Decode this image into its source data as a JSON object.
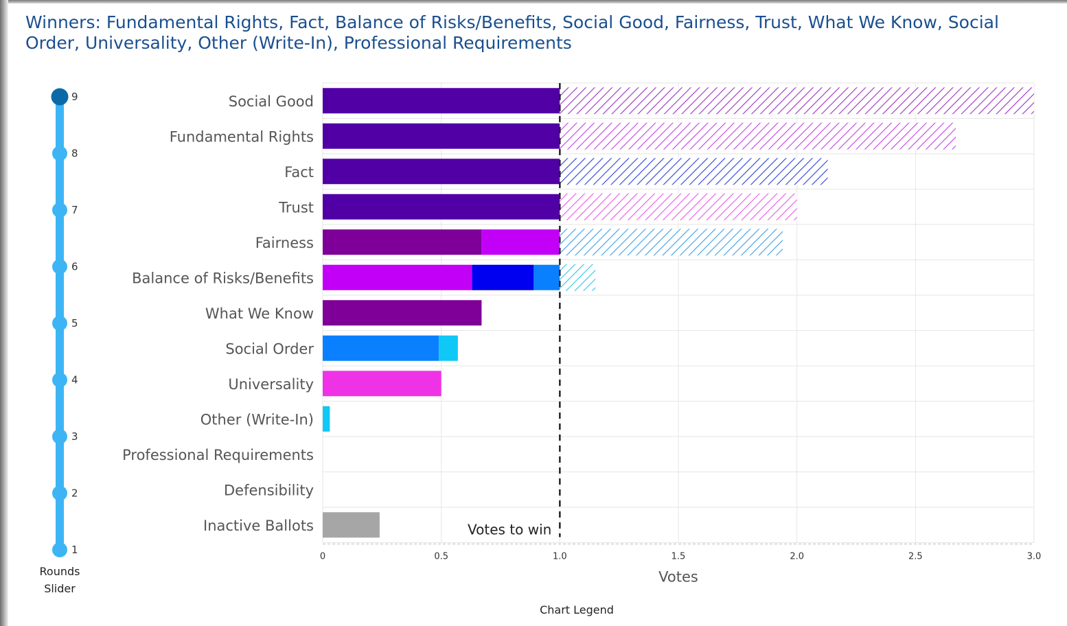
{
  "title": "Winners: Fundamental Rights, Fact, Balance of Risks/Benefits, Social Good, Fairness, Trust, What We Know, Social Order, Universality, Other (Write-In), Professional Requirements",
  "slider": {
    "rounds": [
      "1",
      "2",
      "3",
      "4",
      "5",
      "6",
      "7",
      "8",
      "9"
    ],
    "selected": "9",
    "label_line1": "Rounds",
    "label_line2": "Slider",
    "track_color": "#3db5f5",
    "handle_color": "#0a6aa8"
  },
  "legend_caption": "Chart Legend",
  "chart_data": {
    "type": "bar",
    "orientation": "horizontal",
    "stacked": true,
    "xlabel": "Votes",
    "xlim": [
      0,
      3.0
    ],
    "x_ticks": [
      "0",
      "0.5",
      "1.0",
      "1.5",
      "2.0",
      "2.5",
      "3.0"
    ],
    "threshold": {
      "value": 1.0,
      "label": "Votes to win"
    },
    "grid": true,
    "categories": [
      {
        "name": "Social Good",
        "segments": [
          {
            "value": 1.0,
            "color": "#5000a5",
            "hatched": false
          }
        ],
        "surplus": {
          "value": 2.0,
          "color": "#9b2fc4"
        }
      },
      {
        "name": "Fundamental Rights",
        "segments": [
          {
            "value": 1.0,
            "color": "#5000a5",
            "hatched": false
          }
        ],
        "surplus": {
          "value": 1.67,
          "color": "#c43de8"
        }
      },
      {
        "name": "Fact",
        "segments": [
          {
            "value": 1.0,
            "color": "#5000a5",
            "hatched": false
          }
        ],
        "surplus": {
          "value": 1.13,
          "color": "#2a3fd6"
        }
      },
      {
        "name": "Trust",
        "segments": [
          {
            "value": 1.0,
            "color": "#5000a5",
            "hatched": false
          }
        ],
        "surplus": {
          "value": 1.0,
          "color": "#ea55ea"
        }
      },
      {
        "name": "Fairness",
        "segments": [
          {
            "value": 0.67,
            "color": "#7e0098",
            "hatched": false
          },
          {
            "value": 0.33,
            "color": "#c300f7",
            "hatched": false
          }
        ],
        "surplus": {
          "value": 0.94,
          "color": "#3a9ee8"
        }
      },
      {
        "name": "Balance of Risks/Benefits",
        "segments": [
          {
            "value": 0.63,
            "color": "#c300f7",
            "hatched": false
          },
          {
            "value": 0.26,
            "color": "#0000f0",
            "hatched": false
          },
          {
            "value": 0.11,
            "color": "#0a80ff",
            "hatched": false
          }
        ],
        "surplus": {
          "value": 0.15,
          "color": "#2cc4ea"
        }
      },
      {
        "name": "What We Know",
        "segments": [
          {
            "value": 0.67,
            "color": "#7e0098",
            "hatched": false
          }
        ]
      },
      {
        "name": "Social Order",
        "segments": [
          {
            "value": 0.49,
            "color": "#0a80ff",
            "hatched": false
          },
          {
            "value": 0.08,
            "color": "#0fc8f5",
            "hatched": false
          }
        ]
      },
      {
        "name": "Universality",
        "segments": [
          {
            "value": 0.5,
            "color": "#f032e6",
            "hatched": false
          }
        ]
      },
      {
        "name": "Other (Write-In)",
        "segments": [
          {
            "value": 0.03,
            "color": "#0fc8f5",
            "hatched": false
          }
        ]
      },
      {
        "name": "Professional Requirements",
        "segments": []
      },
      {
        "name": "Defensibility",
        "segments": []
      },
      {
        "name": "Inactive Ballots",
        "segments": [
          {
            "value": 0.24,
            "color": "#a6a6a6",
            "hatched": false
          }
        ]
      }
    ]
  }
}
